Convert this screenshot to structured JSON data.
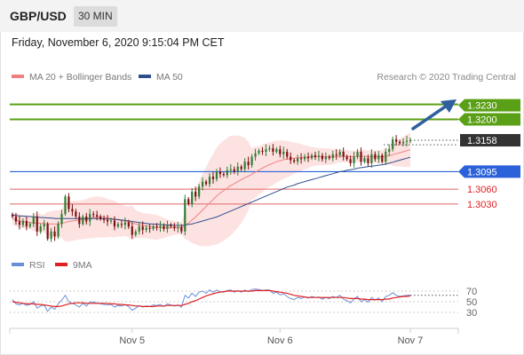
{
  "header": {
    "pair": "GBP/USD",
    "timeframe": "30 MIN",
    "datetime": "Friday, November 6, 2020 9:15:04 PM CET"
  },
  "legend": {
    "ma20": "MA 20 + Bollinger Bands",
    "ma50": "MA 50",
    "credit": "Research © 2020 Trading Central",
    "colors": {
      "ma20": "#f08080",
      "ma50": "#2e4f8c"
    }
  },
  "rsi_legend": {
    "rsi": "RSI",
    "ma9": "9MA",
    "colors": {
      "rsi": "#6a8fd9",
      "ma9": "#e02020"
    }
  },
  "colors": {
    "bull": "#2e7d32",
    "bear": "#7a0f0f",
    "band": "#fde2e2",
    "resistance": "#5aa016",
    "pivot": "#2b62d9",
    "support": "#e06666",
    "last": "#333333",
    "arrow": "#2f5f9e"
  },
  "chart_data": {
    "type": "candlestick",
    "ylim": [
      1.2955,
      1.3265
    ],
    "x_ticks": [
      {
        "label": "Nov 5",
        "index": 34
      },
      {
        "label": "Nov 6",
        "index": 76
      },
      {
        "label": "Nov 7",
        "index": 113
      }
    ],
    "levels": [
      {
        "label": "1.3230",
        "value": 1.323,
        "kind": "resistance"
      },
      {
        "label": "1.3200",
        "value": 1.32,
        "kind": "resistance"
      },
      {
        "label": "1.3158",
        "value": 1.3158,
        "kind": "last"
      },
      {
        "label": "1.3095",
        "value": 1.3095,
        "kind": "pivot"
      },
      {
        "label": "1.3060",
        "value": 1.306,
        "kind": "support"
      },
      {
        "label": "1.3030",
        "value": 1.303,
        "kind": "support"
      }
    ],
    "close": [
      1.3005,
      1.2995,
      1.2988,
      1.2996,
      1.2985,
      1.299,
      1.3005,
      1.2975,
      1.2985,
      1.299,
      1.296,
      1.2975,
      1.2965,
      1.299,
      1.301,
      1.3045,
      1.302,
      1.3015,
      1.3005,
      1.299,
      1.3005,
      1.2995,
      1.301,
      1.3008,
      1.3005,
      1.3,
      1.2998,
      1.2995,
      1.2997,
      1.2985,
      1.299,
      1.2988,
      1.2993,
      1.2985,
      1.2968,
      1.2975,
      1.2985,
      1.2978,
      1.2982,
      1.298,
      1.2985,
      1.2983,
      1.2986,
      1.298,
      1.2988,
      1.2985,
      1.2982,
      1.2984,
      1.2975,
      1.304,
      1.303,
      1.3055,
      1.3045,
      1.3065,
      1.3075,
      1.307,
      1.3085,
      1.308,
      1.3095,
      1.309,
      1.3088,
      1.3098,
      1.31,
      1.3095,
      1.3105,
      1.31,
      1.3115,
      1.3108,
      1.3125,
      1.3132,
      1.3137,
      1.3135,
      1.314,
      1.3142,
      1.3135,
      1.314,
      1.313,
      1.3135,
      1.3125,
      1.3118,
      1.3115,
      1.3122,
      1.312,
      1.3125,
      1.3122,
      1.3128,
      1.3125,
      1.3127,
      1.312,
      1.3125,
      1.3122,
      1.313,
      1.3128,
      1.3135,
      1.3125,
      1.312,
      1.3112,
      1.3125,
      1.3135,
      1.3115,
      1.3122,
      1.3112,
      1.313,
      1.312,
      1.3128,
      1.3115,
      1.3135,
      1.314,
      1.316,
      1.3155,
      1.3152,
      1.3155,
      1.3157,
      1.3158
    ],
    "ma20": [
      1.3,
      1.2998,
      1.2996,
      1.2995,
      1.2994,
      1.2993,
      1.2992,
      1.2992,
      1.2991,
      1.2991,
      1.299,
      1.299,
      1.299,
      1.299,
      1.2991,
      1.2993,
      1.2995,
      1.2996,
      1.2997,
      1.2998,
      1.2999,
      1.3,
      1.3002,
      1.3003,
      1.3004,
      1.3004,
      1.3003,
      1.3002,
      1.3001,
      1.3,
      1.2998,
      1.2997,
      1.2996,
      1.2994,
      1.2992,
      1.299,
      1.2988,
      1.2987,
      1.2986,
      1.2985,
      1.2984,
      1.2983,
      1.2983,
      1.2982,
      1.2982,
      1.2982,
      1.2982,
      1.2982,
      1.2982,
      1.2987,
      1.2992,
      1.2998,
      1.3004,
      1.3011,
      1.3018,
      1.3025,
      1.3032,
      1.3039,
      1.3046,
      1.3052,
      1.3057,
      1.3062,
      1.3067,
      1.3071,
      1.3075,
      1.3079,
      1.3083,
      1.3086,
      1.309,
      1.3094,
      1.3098,
      1.3102,
      1.3106,
      1.3109,
      1.3112,
      1.3115,
      1.3117,
      1.3119,
      1.312,
      1.3121,
      1.3122,
      1.3123,
      1.3123,
      1.3124,
      1.3124,
      1.3125,
      1.3125,
      1.3125,
      1.3125,
      1.3125,
      1.3125,
      1.3125,
      1.3126,
      1.3126,
      1.3126,
      1.3126,
      1.3125,
      1.3125,
      1.3126,
      1.3126,
      1.3126,
      1.3125,
      1.3125,
      1.3125,
      1.3125,
      1.3125,
      1.3126,
      1.3127,
      1.3129,
      1.3131,
      1.3133,
      1.3135,
      1.3137,
      1.3139
    ],
    "ma50": [
      1.3008,
      1.3007,
      1.3006,
      1.3006,
      1.3005,
      1.3005,
      1.3004,
      1.3004,
      1.3003,
      1.3003,
      1.3002,
      1.3002,
      1.3001,
      1.3001,
      1.3001,
      1.3001,
      1.3001,
      1.3001,
      1.3001,
      1.3001,
      1.3001,
      1.3001,
      1.3001,
      1.3001,
      1.3001,
      1.3001,
      1.3,
      1.3,
      1.3,
      1.2999,
      1.2999,
      1.2998,
      1.2997,
      1.2996,
      1.2995,
      1.2994,
      1.2993,
      1.2992,
      1.2991,
      1.299,
      1.299,
      1.2989,
      1.2989,
      1.2988,
      1.2988,
      1.2988,
      1.2987,
      1.2987,
      1.2987,
      1.2988,
      1.2989,
      1.299,
      1.2992,
      1.2994,
      1.2996,
      1.2998,
      1.3,
      1.3002,
      1.3004,
      1.3007,
      1.301,
      1.3013,
      1.3016,
      1.3019,
      1.3022,
      1.3025,
      1.3028,
      1.3031,
      1.3034,
      1.3037,
      1.304,
      1.3043,
      1.3046,
      1.3049,
      1.3052,
      1.3055,
      1.3058,
      1.3061,
      1.3064,
      1.3066,
      1.3068,
      1.3071,
      1.3073,
      1.3075,
      1.3077,
      1.3079,
      1.3081,
      1.3083,
      1.3085,
      1.3087,
      1.3089,
      1.3091,
      1.3093,
      1.3095,
      1.3096,
      1.3098,
      1.3099,
      1.31,
      1.3102,
      1.3103,
      1.3104,
      1.3105,
      1.3106,
      1.3107,
      1.3108,
      1.3109,
      1.311,
      1.3112,
      1.3114,
      1.3116,
      1.3118,
      1.312,
      1.3122,
      1.3124
    ],
    "rsi": {
      "ylim": [
        20,
        80
      ],
      "ticks": [
        {
          "label": "70",
          "value": 70
        },
        {
          "label": "50",
          "value": 50
        },
        {
          "label": "30",
          "value": 30
        }
      ],
      "rsi": [
        54,
        46,
        44,
        47,
        43,
        45,
        50,
        38,
        42,
        44,
        32,
        40,
        36,
        46,
        53,
        62,
        50,
        47,
        44,
        40,
        47,
        42,
        50,
        49,
        48,
        46,
        45,
        44,
        45,
        40,
        43,
        42,
        45,
        41,
        34,
        38,
        43,
        40,
        42,
        41,
        44,
        43,
        45,
        41,
        46,
        44,
        42,
        44,
        40,
        62,
        57,
        66,
        60,
        68,
        70,
        66,
        72,
        68,
        72,
        69,
        68,
        71,
        72,
        68,
        71,
        68,
        72,
        69,
        73,
        74,
        73,
        71,
        72,
        72,
        66,
        68,
        63,
        65,
        60,
        56,
        54,
        58,
        56,
        59,
        57,
        60,
        58,
        59,
        55,
        58,
        56,
        60,
        58,
        62,
        55,
        52,
        48,
        55,
        60,
        50,
        54,
        49,
        58,
        53,
        57,
        50,
        60,
        62,
        67,
        62,
        60,
        61,
        62,
        62
      ],
      "ma9": [
        50,
        49,
        48,
        47,
        46,
        46,
        46,
        45,
        45,
        44,
        43,
        42,
        41,
        41,
        42,
        44,
        46,
        47,
        48,
        48,
        48,
        47,
        47,
        47,
        47,
        47,
        47,
        47,
        46,
        46,
        45,
        45,
        44,
        44,
        43,
        42,
        42,
        41,
        41,
        41,
        41,
        42,
        42,
        42,
        43,
        43,
        43,
        43,
        43,
        45,
        47,
        50,
        52,
        55,
        58,
        61,
        63,
        65,
        67,
        68,
        69,
        70,
        70,
        70,
        70,
        70,
        70,
        70,
        70,
        71,
        71,
        71,
        71,
        71,
        70,
        69,
        68,
        67,
        66,
        64,
        62,
        61,
        60,
        59,
        58,
        58,
        58,
        58,
        58,
        58,
        58,
        58,
        58,
        58,
        58,
        57,
        56,
        56,
        56,
        55,
        55,
        54,
        54,
        54,
        54,
        54,
        55,
        55,
        57,
        58,
        59,
        60,
        60,
        61
      ]
    }
  }
}
